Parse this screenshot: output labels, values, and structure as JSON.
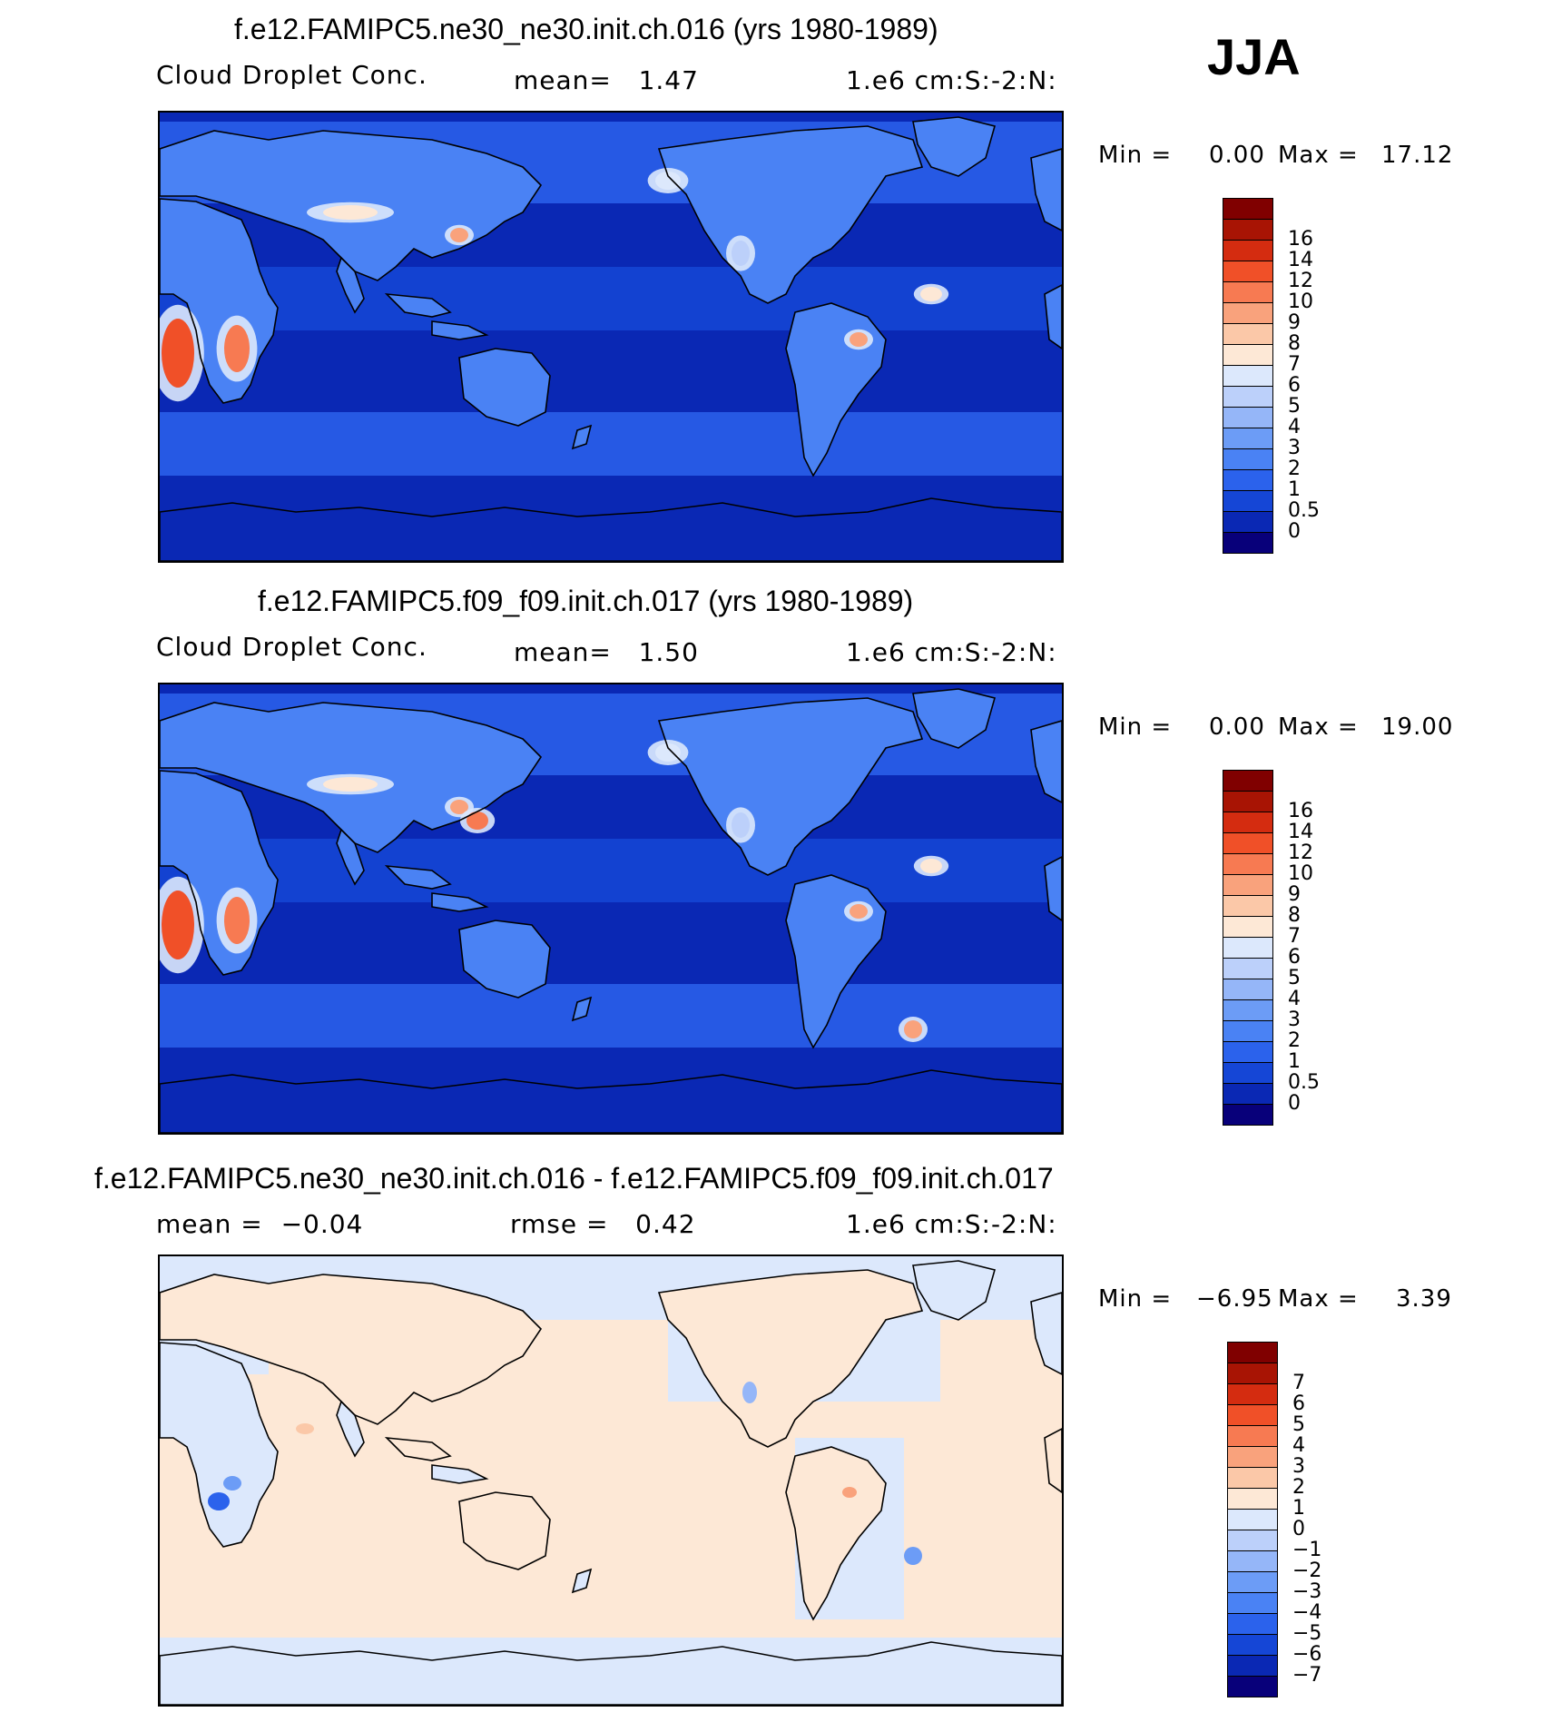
{
  "season": "JJA",
  "panels": [
    {
      "title": "f.e12.FAMIPC5.ne30_ne30.init.ch.016 (yrs 1980-1989)",
      "left": "Cloud Droplet Conc.",
      "center": "mean=   1.47",
      "right": "1.e6 cm:S:-2:N:",
      "min_label": "Min =",
      "min_value": "0.00",
      "max_label": "Max =",
      "max_value": "17.12",
      "kind": "field",
      "colors": [
        "#08007a",
        "#0a28b4",
        "#1546d6",
        "#2b62ec",
        "#4a82f4",
        "#6c9cf6",
        "#95b6f8",
        "#bcd0fa",
        "#dce8fc",
        "#fde8d6",
        "#fbc8a8",
        "#f9a27c",
        "#f77a52",
        "#f05028",
        "#d42c10",
        "#a81404",
        "#800000"
      ],
      "ticks": [
        "0",
        "0.5",
        "1",
        "2",
        "3",
        "4",
        "5",
        "6",
        "7",
        "8",
        "9",
        "10",
        "12",
        "14",
        "16"
      ]
    },
    {
      "title": "f.e12.FAMIPC5.f09_f09.init.ch.017 (yrs 1980-1989)",
      "left": "Cloud Droplet Conc.",
      "center": "mean=   1.50",
      "right": "1.e6 cm:S:-2:N:",
      "min_label": "Min =",
      "min_value": "0.00",
      "max_label": "Max =",
      "max_value": "19.00",
      "kind": "field",
      "colors": [
        "#08007a",
        "#0a28b4",
        "#1546d6",
        "#2b62ec",
        "#4a82f4",
        "#6c9cf6",
        "#95b6f8",
        "#bcd0fa",
        "#dce8fc",
        "#fde8d6",
        "#fbc8a8",
        "#f9a27c",
        "#f77a52",
        "#f05028",
        "#d42c10",
        "#a81404",
        "#800000"
      ],
      "ticks": [
        "0",
        "0.5",
        "1",
        "2",
        "3",
        "4",
        "5",
        "6",
        "7",
        "8",
        "9",
        "10",
        "12",
        "14",
        "16"
      ]
    },
    {
      "title": "f.e12.FAMIPC5.ne30_ne30.init.ch.016 - f.e12.FAMIPC5.f09_f09.init.ch.017",
      "left": "mean =  −0.04",
      "center": "rmse =   0.42",
      "right": "1.e6 cm:S:-2:N:",
      "min_label": "Min =",
      "min_value": "−6.95",
      "max_label": "Max =",
      "max_value": "3.39",
      "kind": "diff",
      "colors": [
        "#08007a",
        "#0a28b4",
        "#1546d6",
        "#2b62ec",
        "#4a82f4",
        "#6c9cf6",
        "#95b6f8",
        "#bcd0fa",
        "#dce8fc",
        "#fde8d6",
        "#fbc8a8",
        "#f9a27c",
        "#f77a52",
        "#f05028",
        "#d42c10",
        "#a81404",
        "#800000"
      ],
      "ticks": [
        "−7",
        "−6",
        "−5",
        "−4",
        "−3",
        "−2",
        "−1",
        "0",
        "1",
        "2",
        "3",
        "4",
        "5",
        "6",
        "7"
      ]
    }
  ]
}
